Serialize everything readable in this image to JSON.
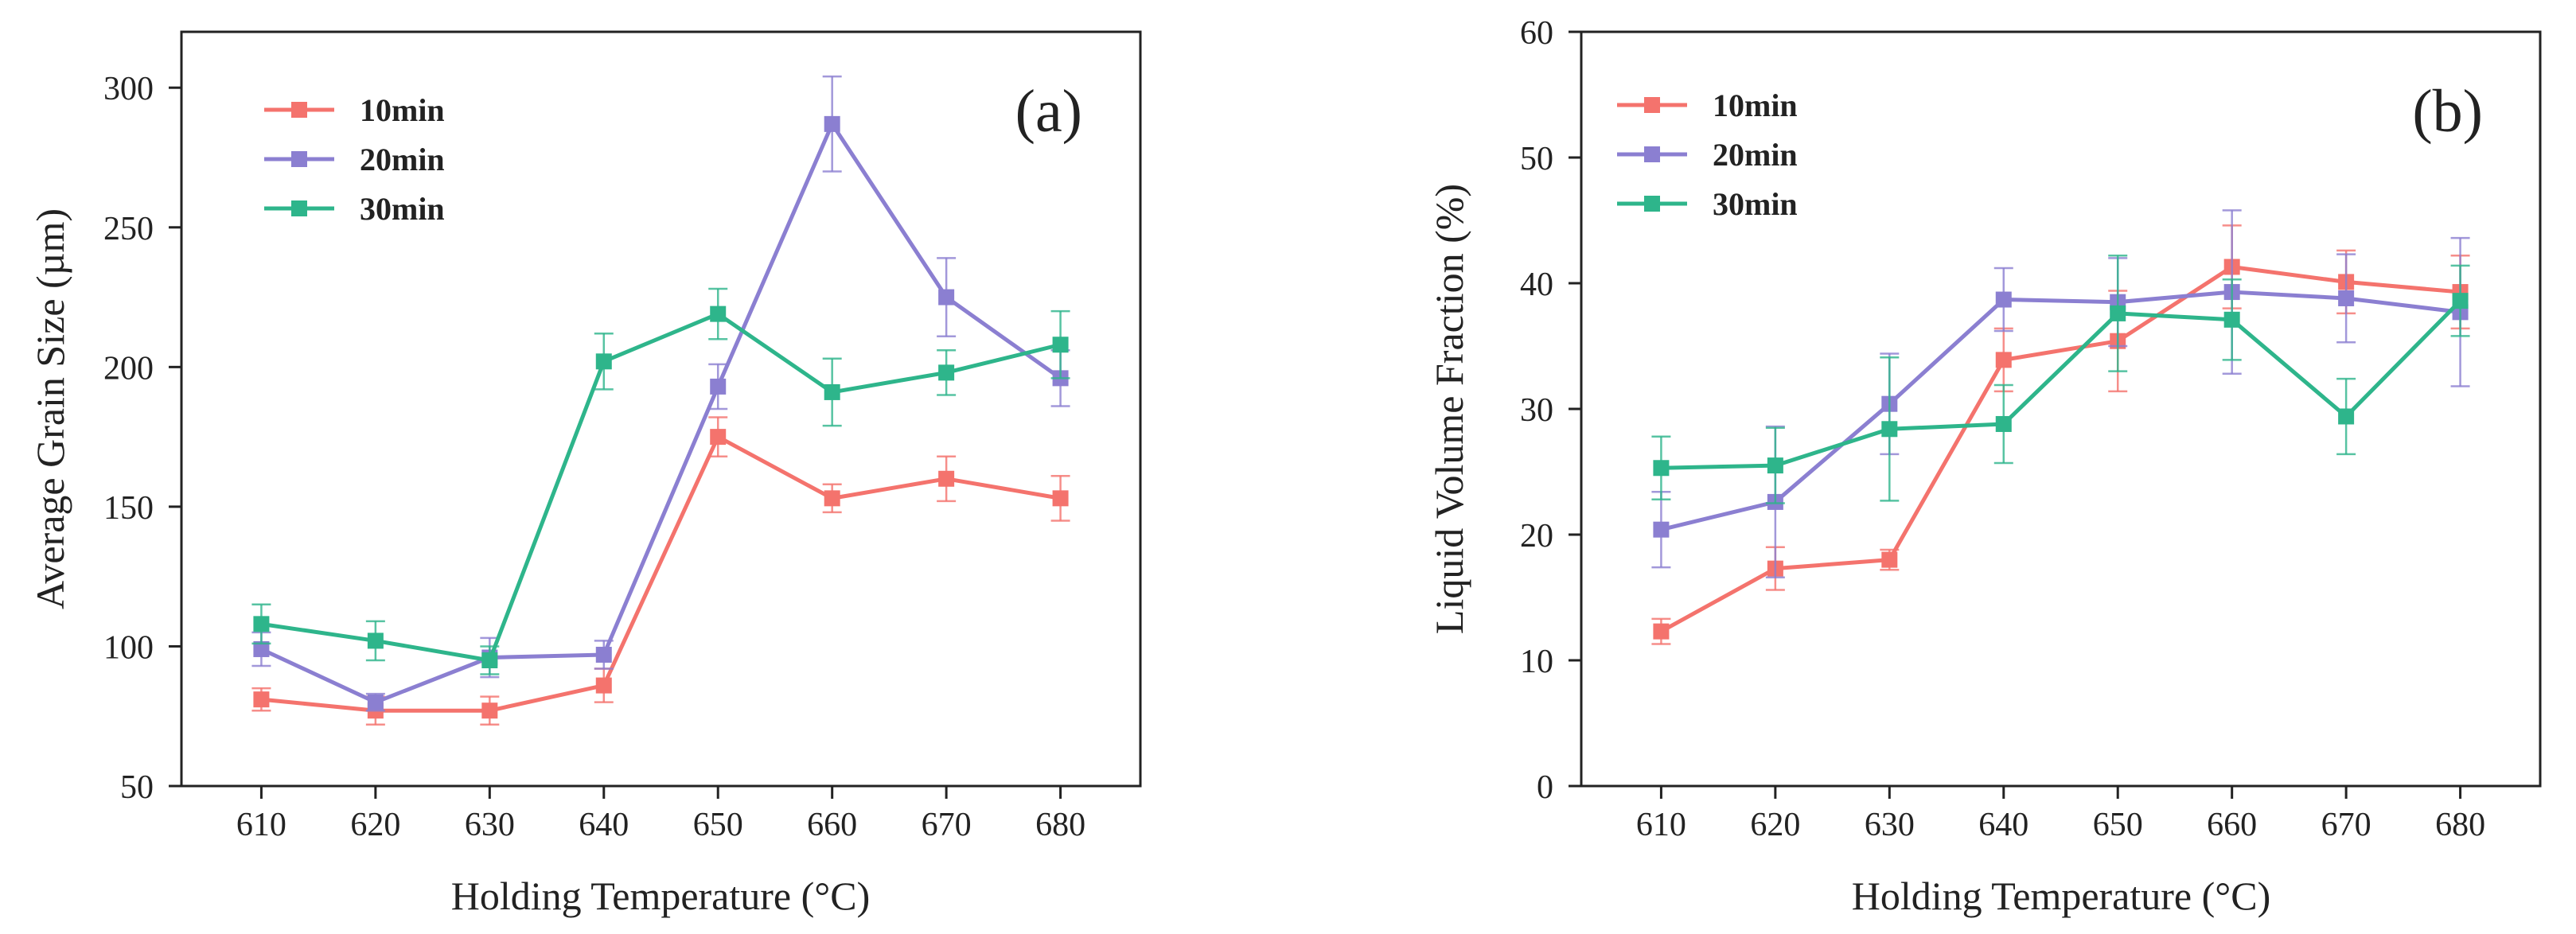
{
  "chart_data": [
    {
      "type": "line",
      "panel_label": "(a)",
      "title": "",
      "xlabel": "Holding Temperature (°C)",
      "ylabel": "Average Grain Size (µm)",
      "x": [
        610,
        620,
        630,
        640,
        650,
        660,
        670,
        680
      ],
      "xlim": [
        603,
        687
      ],
      "ylim": [
        50,
        320
      ],
      "xticks": [
        610,
        620,
        630,
        640,
        650,
        660,
        670,
        680
      ],
      "yticks": [
        50,
        100,
        150,
        200,
        250,
        300
      ],
      "legend_position": "top-left",
      "series": [
        {
          "name": "10min",
          "color": "#f4736d",
          "values": [
            81,
            77,
            77,
            86,
            175,
            153,
            160,
            153
          ],
          "errors": [
            4,
            5,
            5,
            6,
            7,
            5,
            8,
            8
          ]
        },
        {
          "name": "20min",
          "color": "#8b7fd1",
          "values": [
            99,
            80,
            96,
            97,
            193,
            287,
            225,
            196
          ],
          "errors": [
            6,
            3,
            7,
            5,
            8,
            17,
            14,
            10
          ]
        },
        {
          "name": "30min",
          "color": "#2eb58b",
          "values": [
            108,
            102,
            95,
            202,
            219,
            191,
            198,
            208
          ],
          "errors": [
            7,
            7,
            5,
            10,
            9,
            12,
            8,
            12
          ]
        }
      ]
    },
    {
      "type": "line",
      "panel_label": "(b)",
      "title": "",
      "xlabel": "Holding Temperature (°C)",
      "ylabel": "Liquid Volume Fraction (%)",
      "x": [
        610,
        620,
        630,
        640,
        650,
        660,
        670,
        680
      ],
      "xlim": [
        603,
        687
      ],
      "ylim": [
        0,
        60
      ],
      "xticks": [
        610,
        620,
        630,
        640,
        650,
        660,
        670,
        680
      ],
      "yticks": [
        0,
        10,
        20,
        30,
        40,
        50,
        60
      ],
      "legend_position": "top-left",
      "series": [
        {
          "name": "10min",
          "color": "#f4736d",
          "values": [
            12.3,
            17.3,
            18.0,
            33.9,
            35.4,
            41.3,
            40.1,
            39.3
          ],
          "errors": [
            1.0,
            1.7,
            0.8,
            2.5,
            4.0,
            3.3,
            2.5,
            2.9
          ]
        },
        {
          "name": "20min",
          "color": "#8b7fd1",
          "values": [
            20.4,
            22.6,
            30.4,
            38.7,
            38.5,
            39.3,
            38.8,
            37.7
          ],
          "errors": [
            3.0,
            6.0,
            4.0,
            2.5,
            3.5,
            6.5,
            3.5,
            5.9
          ]
        },
        {
          "name": "30min",
          "color": "#2eb58b",
          "values": [
            25.3,
            25.5,
            28.4,
            28.8,
            37.6,
            37.1,
            29.4,
            38.6
          ],
          "errors": [
            2.5,
            3.0,
            5.7,
            3.1,
            4.6,
            3.2,
            3.0,
            2.8
          ]
        }
      ]
    }
  ]
}
